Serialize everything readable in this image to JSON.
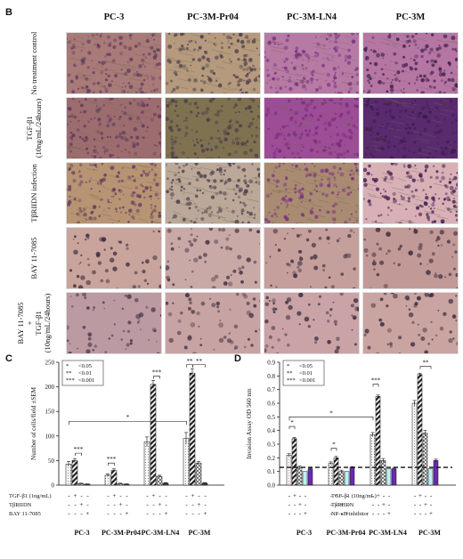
{
  "figure": {
    "panel_b_label": "B",
    "panel_c_label": "C",
    "panel_d_label": "D",
    "columns": [
      "PC-3",
      "PC-3M-Pr04",
      "PC-3M-LN4",
      "PC-3M"
    ],
    "rows": [
      {
        "lines": [
          "No treatment control"
        ]
      },
      {
        "lines": [
          "TGF-β1",
          "(10ng/mL/24hours)"
        ]
      },
      {
        "lines": [
          "TβRIIDN infection"
        ]
      },
      {
        "lines": [
          "BAY 11-7085"
        ]
      },
      {
        "lines": [
          "BAY 11-7085",
          "+",
          "TGF-β1",
          "(10ng/mL/24hours)"
        ]
      }
    ],
    "micro_colors": {
      "r0": [
        "#a87a78",
        "#b59a7d",
        "#b77aa5",
        "#b676a4"
      ],
      "r1": [
        "#9d6c6f",
        "#7f7250",
        "#9c4d96",
        "#5a2a6f"
      ],
      "r2": [
        "#b99474",
        "#bba898",
        "#a98b72",
        "#d8b0b6"
      ],
      "r3": [
        "#c8a49c",
        "#c9a9a6",
        "#c49f9c",
        "#c19a98"
      ],
      "r4": [
        "#bc9aa2",
        "#c7a3a3",
        "#c9a3a6",
        "#c9a4a1"
      ],
      "dots": [
        "#5d3a5c",
        "#4a3a4a",
        "#7a2c7c",
        "#3e1c4e"
      ]
    }
  },
  "chart_data": [
    {
      "type": "bar",
      "panel": "C",
      "ylabel": "Number of cells/field ±SEM",
      "ylim": [
        0,
        250
      ],
      "yticks": [
        0,
        50,
        100,
        150,
        200,
        250
      ],
      "categories": [
        "PC-3",
        "PC-3M-Pr04",
        "PC-3M-LN4",
        "PC-3M"
      ],
      "series": [
        {
          "values": [
            43,
            20,
            88,
            95
          ],
          "errors": [
            5,
            3,
            10,
            12
          ],
          "fill": "#eeeeee"
        },
        {
          "values": [
            50,
            30,
            205,
            228
          ],
          "errors": [
            4,
            3,
            8,
            9
          ],
          "fill": "#8a8a8a"
        },
        {
          "values": [
            3,
            3,
            18,
            45
          ],
          "errors": [
            1,
            1,
            2,
            3
          ],
          "fill": "#cccccc"
        },
        {
          "values": [
            2,
            2,
            4,
            4
          ],
          "errors": [
            0.5,
            0.5,
            1,
            1
          ],
          "fill": "#444444"
        }
      ],
      "legend": [
        {
          "mark": "*",
          "label": "<0.05"
        },
        {
          "mark": "**",
          "label": "<0.01"
        },
        {
          "mark": "***",
          "label": "<0.001"
        }
      ],
      "significance": [
        {
          "cat": 0,
          "from": 1,
          "to": 2,
          "y": 65,
          "label": "***"
        },
        {
          "cat": 1,
          "from": 0,
          "to": 1,
          "y": 45,
          "label": "***"
        },
        {
          "cat": 2,
          "from": 1,
          "to": 2,
          "y": 222,
          "label": "***"
        },
        {
          "cat": 3,
          "from": 0,
          "to": 1,
          "y": 245,
          "label": "**"
        },
        {
          "cat": 3,
          "from": 1,
          "to": 3,
          "y": 245,
          "label": "**"
        }
      ],
      "long_bracket": {
        "from_cat": 0,
        "to_cat": 3,
        "y": 130,
        "label": "*"
      },
      "treatments": [
        {
          "label": "TGF-β1 (1ng/mL)",
          "signs": [
            "-",
            "+",
            "-",
            "-"
          ]
        },
        {
          "label": "TβRIIDN",
          "signs": [
            "-",
            "-",
            "+",
            "-"
          ]
        },
        {
          "label": "BAY 11-7085",
          "signs": [
            "-",
            "-",
            "-",
            "+"
          ]
        }
      ]
    },
    {
      "type": "bar",
      "panel": "D",
      "ylabel": "Invasion Assay OD 560 nm",
      "ylim": [
        0,
        0.9
      ],
      "yticks": [
        0,
        0.1,
        0.2,
        0.3,
        0.4,
        0.5,
        0.6,
        0.7,
        0.8,
        0.9
      ],
      "threshold": 0.13,
      "categories": [
        "PC-3",
        "PC-3M-Pr04",
        "PC-3M-LN4",
        "PC-3M"
      ],
      "series": [
        {
          "values": [
            0.22,
            0.16,
            0.37,
            0.6
          ],
          "errors": [
            0.01,
            0.01,
            0.015,
            0.02
          ],
          "fill": "#eeeeee"
        },
        {
          "values": [
            0.34,
            0.2,
            0.65,
            0.81
          ],
          "errors": [
            0.01,
            0.01,
            0.01,
            0.01
          ],
          "fill": "#8a8a8a"
        },
        {
          "values": [
            0.13,
            0.1,
            0.18,
            0.38
          ],
          "errors": [
            0.01,
            0.01,
            0.015,
            0.02
          ],
          "fill": "#cccccc"
        },
        {
          "values": [
            0.12,
            0.13,
            0.12,
            0.18
          ],
          "errors": [
            0.005,
            0.005,
            0.005,
            0.01
          ],
          "fill": "#6a2ab0"
        }
      ],
      "extra_bar": {
        "values": [
          0.1,
          0.1,
          0.12,
          0.12
        ],
        "fill": "#bfeff2"
      },
      "legend": [
        {
          "mark": "*",
          "label": "<0.05"
        },
        {
          "mark": "**",
          "label": "<0.01"
        },
        {
          "mark": "***",
          "label": "<0.001"
        }
      ],
      "significance": [
        {
          "cat": 0,
          "from": 0,
          "to": 1,
          "y": 0.43,
          "label": "*"
        },
        {
          "cat": 1,
          "from": 0,
          "to": 1,
          "y": 0.27,
          "label": "*"
        },
        {
          "cat": 2,
          "from": 0,
          "to": 1,
          "y": 0.74,
          "label": "***"
        },
        {
          "cat": 3,
          "from": 1,
          "to": 3,
          "y": 0.87,
          "label": "**"
        }
      ],
      "long_bracket": {
        "from_cat": 0,
        "to_cat": 2,
        "y": 0.5,
        "label": "*"
      },
      "treatments": [
        {
          "label": "TGF-β1 (10ng/mL)",
          "signs": [
            "-",
            "+",
            "-",
            "-"
          ]
        },
        {
          "label": "TβRIIDN",
          "signs": [
            "-",
            "-",
            "+",
            "-"
          ]
        },
        {
          "label": "NF-κB inhibitor",
          "signs": [
            "-",
            "-",
            "-",
            "+"
          ]
        }
      ]
    }
  ]
}
